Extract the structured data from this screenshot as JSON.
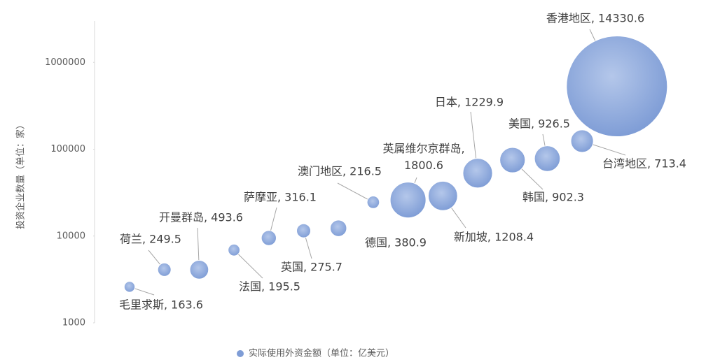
{
  "chart_data": {
    "type": "bubble",
    "y_label": "投资企业数量（单位：家）",
    "ylim": [
      1000,
      3000000
    ],
    "log_y": true,
    "yticks": [
      1000,
      10000,
      100000,
      1000000
    ],
    "series": [
      {
        "name": "实际使用外资金额（单位：亿美元）",
        "color": "#7f9dd6",
        "values": [
          2600,
          4100,
          4100,
          6900,
          9500,
          11500,
          12300,
          24500,
          26000,
          29000,
          53000,
          75000,
          78000,
          124000,
          530000
        ],
        "sizes": [
          163.6,
          249.5,
          493.6,
          195.5,
          316.1,
          275.7,
          380.9,
          216.5,
          1800.6,
          1208.4,
          1229.9,
          902.3,
          926.5,
          713.4,
          14330.6
        ],
        "value_labels": [
          "毛里求斯, 163.6",
          "荷兰, 249.5",
          "开曼群岛, 493.6",
          "法国, 195.5",
          "萨摩亚, 316.1",
          "英国, 275.7",
          "德国, 380.9",
          "澳门地区, 216.5",
          "英属维尔京群岛,\n1800.6",
          "新加坡, 1208.4",
          "日本, 1229.9",
          "韩国, 902.3",
          "美国, 926.5",
          "台湾地区, 713.4",
          "香港地区, 14330.6"
        ]
      }
    ]
  }
}
